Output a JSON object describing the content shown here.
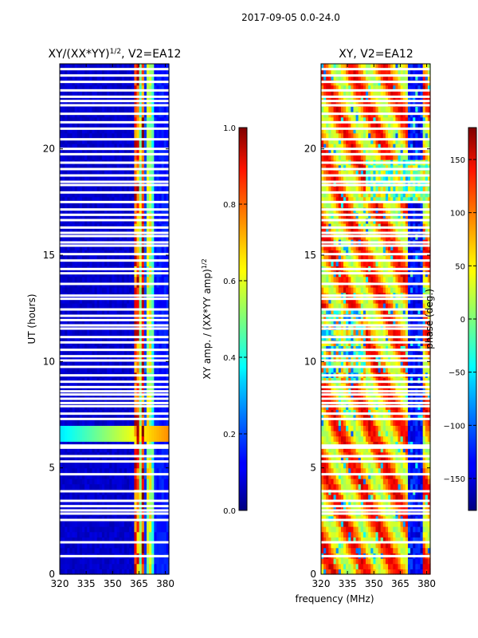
{
  "figure": {
    "suptitle": "2017-09-05 0.0-24.0",
    "shared_ylabel": "UT (hours)",
    "shared_xlabel": "frequency (MHz)"
  },
  "chart_data": [
    {
      "type": "heatmap",
      "id": "amp",
      "title": "XY/(XX*YY)",
      "title_superscript": "1/2",
      "title_suffix": ", V2=EA12",
      "x": {
        "min": 320,
        "max": 382,
        "ticks": [
          320,
          335,
          350,
          365,
          380
        ],
        "tick_labels": [
          "320",
          "335",
          "350",
          "365",
          "380"
        ],
        "label": "frequency (MHz)"
      },
      "y": {
        "min": 0,
        "max": 24,
        "ticks": [
          0,
          5,
          10,
          15,
          20
        ],
        "tick_labels": [
          "0",
          "5",
          "10",
          "15",
          "20"
        ],
        "label": "UT (hours)"
      },
      "colorbar": {
        "label": "XY amp. / (XX*YY amp)",
        "label_superscript": "1/2",
        "min": 0.0,
        "max": 1.0,
        "ticks": [
          0.0,
          0.2,
          0.4,
          0.6,
          0.8,
          1.0
        ],
        "tick_labels": [
          "0.0",
          "0.2",
          "0.4",
          "0.6",
          "0.8",
          "1.0"
        ],
        "colormap": "jet"
      },
      "description": "Mostly low amplitude (~0.05) below 362 MHz; high amplitude bands (0.5-0.95) at 362-368 and 370-375 MHz; elevated amplitude near 6.5 h",
      "high_bands_mhz": [
        [
          362,
          365,
          0.85
        ],
        [
          365,
          366.5,
          0.55
        ],
        [
          366.5,
          368,
          0.9
        ],
        [
          368,
          370,
          0.2
        ],
        [
          370,
          372,
          0.6
        ],
        [
          372,
          374,
          0.45
        ],
        [
          374,
          382,
          0.15
        ]
      ],
      "event_hours": [
        6.2,
        7.0
      ]
    },
    {
      "type": "heatmap",
      "id": "phase",
      "title": "XY, V2=EA12",
      "x": {
        "min": 320,
        "max": 382,
        "ticks": [
          320,
          335,
          350,
          365,
          380
        ],
        "tick_labels": [
          "320",
          "335",
          "350",
          "365",
          "380"
        ],
        "label": "frequency (MHz)"
      },
      "y": {
        "min": 0,
        "max": 24,
        "ticks": [
          0,
          5,
          10,
          15,
          20
        ],
        "tick_labels": [
          "0",
          "5",
          "10",
          "15",
          "20"
        ],
        "label": ""
      },
      "colorbar": {
        "label": "phase (deg.)",
        "min": -180,
        "max": 180,
        "ticks": [
          150,
          100,
          50,
          0,
          -50,
          -100,
          -150
        ],
        "tick_labels": [
          "150",
          "100",
          "50",
          "0",
          "−50",
          "−100",
          "−150"
        ],
        "colormap": "jet"
      },
      "description": "Phase mostly 60-150 deg (yellow-red) with noisy blue/cyan patches and a dark-blue band near 370-378 MHz"
    }
  ],
  "gap_hours": [
    0.85,
    1.5,
    2.55,
    2.85,
    3.0,
    3.2,
    3.45,
    3.9,
    4.7,
    5.3,
    5.55,
    5.95,
    6.05,
    7.3,
    7.55,
    7.9,
    8.05,
    8.25,
    8.45,
    8.6,
    8.8,
    9.05,
    9.35,
    9.75,
    10.05,
    10.25,
    10.55,
    10.9,
    11.15,
    11.55,
    11.7,
    11.95,
    12.15,
    12.45,
    12.95,
    13.1,
    13.65,
    14.15,
    14.35,
    14.75,
    15.05,
    15.45,
    15.6,
    15.9,
    16.05,
    16.3,
    16.65,
    16.9,
    17.15,
    17.5,
    17.95,
    18.3,
    18.45,
    18.75,
    19.05,
    19.35,
    19.75,
    20.0,
    20.45,
    20.95,
    21.25,
    21.65,
    22.05,
    22.25,
    22.45,
    22.75,
    23.15,
    23.45,
    23.75
  ]
}
